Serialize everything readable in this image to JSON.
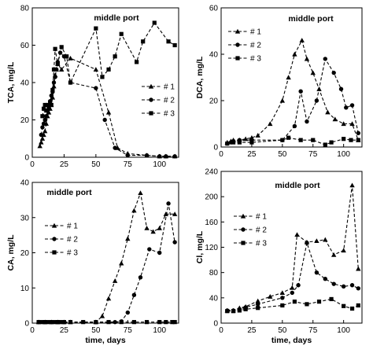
{
  "chart_data": [
    {
      "type": "line",
      "title": "middle port",
      "xlabel": "",
      "ylabel": "TCA, mg/L",
      "xlim": [
        0,
        115
      ],
      "ylim": [
        0,
        80
      ],
      "xticks": [
        0,
        25,
        50,
        75,
        100
      ],
      "yticks": [
        0,
        20,
        40,
        60,
        80
      ],
      "x_tick_labels": [
        "0",
        "25",
        "50",
        "75",
        "100"
      ],
      "y_tick_labels": [
        "0",
        "20",
        "40",
        "60",
        "80"
      ],
      "legend": "center-right",
      "series": [
        {
          "name": "# 1",
          "marker": "triangle",
          "points": [
            [
              6,
              6
            ],
            [
              7,
              8
            ],
            [
              8,
              10
            ],
            [
              9,
              12
            ],
            [
              10,
              14
            ],
            [
              11,
              18
            ],
            [
              12,
              22
            ],
            [
              13,
              24
            ],
            [
              14,
              26
            ],
            [
              15,
              28
            ],
            [
              16,
              32
            ],
            [
              17,
              38
            ],
            [
              18,
              44
            ],
            [
              19,
              47
            ],
            [
              20,
              50
            ],
            [
              23,
              47
            ],
            [
              30,
              53
            ],
            [
              50,
              47
            ],
            [
              60,
              24
            ],
            [
              67,
              5
            ],
            [
              75,
              2
            ],
            [
              90,
              1
            ],
            [
              100,
              0.5
            ],
            [
              105,
              0.5
            ],
            [
              112,
              0.5
            ]
          ]
        },
        {
          "name": "# 2",
          "marker": "circle",
          "points": [
            [
              7,
              12
            ],
            [
              8,
              16
            ],
            [
              9,
              18
            ],
            [
              10,
              20
            ],
            [
              11,
              22
            ],
            [
              12,
              25
            ],
            [
              13,
              27
            ],
            [
              14,
              30
            ],
            [
              15,
              33
            ],
            [
              16,
              35
            ],
            [
              17,
              40
            ],
            [
              18,
              43
            ],
            [
              19,
              47
            ],
            [
              20,
              51
            ],
            [
              22,
              56
            ],
            [
              25,
              54
            ],
            [
              30,
              40
            ],
            [
              50,
              37
            ],
            [
              57,
              20
            ],
            [
              65,
              5
            ],
            [
              75,
              1
            ],
            [
              90,
              1
            ],
            [
              100,
              0.5
            ],
            [
              105,
              0.5
            ],
            [
              112,
              0.5
            ]
          ]
        },
        {
          "name": "# 3",
          "marker": "square",
          "points": [
            [
              8,
              22
            ],
            [
              9,
              26
            ],
            [
              10,
              28
            ],
            [
              11,
              25
            ],
            [
              12,
              28
            ],
            [
              13,
              27
            ],
            [
              14,
              29
            ],
            [
              15,
              28
            ],
            [
              16,
              36
            ],
            [
              17,
              47
            ],
            [
              18,
              58
            ],
            [
              20,
              50
            ],
            [
              23,
              59
            ],
            [
              27,
              54
            ],
            [
              30,
              40
            ],
            [
              50,
              69
            ],
            [
              55,
              43
            ],
            [
              60,
              47
            ],
            [
              65,
              54
            ],
            [
              70,
              66
            ],
            [
              82,
              51
            ],
            [
              87,
              62
            ],
            [
              96,
              72
            ],
            [
              107,
              62
            ],
            [
              112,
              60
            ]
          ]
        }
      ]
    },
    {
      "type": "line",
      "title": "middle port",
      "xlabel": "",
      "ylabel": "DCA, mg/L",
      "xlim": [
        0,
        115
      ],
      "ylim": [
        0,
        60
      ],
      "xticks": [
        0,
        25,
        50,
        75,
        100
      ],
      "yticks": [
        0,
        20,
        40,
        60
      ],
      "x_tick_labels": [
        "0",
        "25",
        "50",
        "75",
        "100"
      ],
      "y_tick_labels": [
        "0",
        "20",
        "40",
        "60"
      ],
      "legend": "top-left",
      "series": [
        {
          "name": "# 1",
          "marker": "triangle",
          "points": [
            [
              5,
              2
            ],
            [
              8,
              2.5
            ],
            [
              10,
              3
            ],
            [
              15,
              3
            ],
            [
              20,
              3.5
            ],
            [
              25,
              4
            ],
            [
              30,
              5
            ],
            [
              40,
              10
            ],
            [
              50,
              20
            ],
            [
              55,
              30
            ],
            [
              60,
              40
            ],
            [
              66,
              46
            ],
            [
              70,
              38
            ],
            [
              75,
              32
            ],
            [
              80,
              25
            ],
            [
              87,
              15
            ],
            [
              93,
              12
            ],
            [
              100,
              10
            ],
            [
              107,
              10
            ],
            [
              112,
              3
            ]
          ]
        },
        {
          "name": "# 2",
          "marker": "circle",
          "points": [
            [
              5,
              1.5
            ],
            [
              8,
              2
            ],
            [
              10,
              2.5
            ],
            [
              15,
              3
            ],
            [
              25,
              3
            ],
            [
              50,
              3
            ],
            [
              60,
              9
            ],
            [
              65,
              24
            ],
            [
              70,
              11
            ],
            [
              78,
              20
            ],
            [
              85,
              38
            ],
            [
              92,
              32
            ],
            [
              98,
              25
            ],
            [
              102,
              17
            ],
            [
              107,
              18
            ],
            [
              112,
              6
            ]
          ]
        },
        {
          "name": "# 3",
          "marker": "square",
          "points": [
            [
              5,
              1.5
            ],
            [
              10,
              2
            ],
            [
              15,
              2
            ],
            [
              25,
              2
            ],
            [
              50,
              3
            ],
            [
              55,
              4
            ],
            [
              65,
              3
            ],
            [
              75,
              3
            ],
            [
              85,
              1
            ],
            [
              90,
              2
            ],
            [
              100,
              3.5
            ],
            [
              106,
              3
            ],
            [
              112,
              3
            ]
          ]
        }
      ]
    },
    {
      "type": "line",
      "title": "middle port",
      "xlabel": "time, days",
      "ylabel": "CA, mg/L",
      "xlim": [
        0,
        115
      ],
      "ylim": [
        0,
        40
      ],
      "xticks": [
        0,
        25,
        50,
        75,
        100
      ],
      "yticks": [
        0,
        10,
        20,
        30,
        40
      ],
      "x_tick_labels": [
        "0",
        "25",
        "50",
        "75",
        "100"
      ],
      "y_tick_labels": [
        "0",
        "10",
        "20",
        "30",
        "40"
      ],
      "legend": "center-left",
      "series": [
        {
          "name": "# 1",
          "marker": "triangle",
          "points": [
            [
              5,
              0.3
            ],
            [
              10,
              0.3
            ],
            [
              15,
              0.3
            ],
            [
              20,
              0.3
            ],
            [
              25,
              0.3
            ],
            [
              30,
              0.3
            ],
            [
              50,
              0.3
            ],
            [
              55,
              2
            ],
            [
              60,
              7
            ],
            [
              65,
              12
            ],
            [
              70,
              17
            ],
            [
              75,
              24
            ],
            [
              80,
              32
            ],
            [
              85,
              37
            ],
            [
              90,
              27
            ],
            [
              95,
              26
            ],
            [
              100,
              27
            ],
            [
              105,
              31
            ],
            [
              112,
              31
            ]
          ]
        },
        {
          "name": "# 2",
          "marker": "circle",
          "points": [
            [
              5,
              0.3
            ],
            [
              10,
              0.3
            ],
            [
              15,
              0.3
            ],
            [
              20,
              0.3
            ],
            [
              25,
              0.3
            ],
            [
              50,
              0.3
            ],
            [
              65,
              0.3
            ],
            [
              70,
              0.5
            ],
            [
              75,
              3
            ],
            [
              80,
              8
            ],
            [
              85,
              13
            ],
            [
              92,
              21
            ],
            [
              100,
              20
            ],
            [
              107,
              34
            ],
            [
              112,
              23
            ]
          ]
        },
        {
          "name": "# 3",
          "marker": "square",
          "points": [
            [
              5,
              0.3
            ],
            [
              8,
              0.3
            ],
            [
              10,
              0.3
            ],
            [
              12,
              0.3
            ],
            [
              15,
              0.3
            ],
            [
              18,
              0.3
            ],
            [
              20,
              0.3
            ],
            [
              22,
              0.3
            ],
            [
              25,
              0.3
            ],
            [
              30,
              0.3
            ],
            [
              40,
              0.3
            ],
            [
              50,
              0.3
            ],
            [
              60,
              0.3
            ],
            [
              70,
              0.3
            ],
            [
              80,
              0.3
            ],
            [
              90,
              0.3
            ],
            [
              100,
              0.3
            ],
            [
              105,
              0.3
            ],
            [
              110,
              0.3
            ],
            [
              112,
              0.3
            ]
          ]
        }
      ]
    },
    {
      "type": "line",
      "title": "middle port",
      "xlabel": "time, days",
      "ylabel": "Cl, mg/L",
      "xlim": [
        0,
        115
      ],
      "ylim": [
        0,
        240
      ],
      "xticks": [
        0,
        25,
        50,
        75,
        100
      ],
      "yticks": [
        0,
        40,
        80,
        120,
        160,
        200,
        240
      ],
      "x_tick_labels": [
        "0",
        "25",
        "50",
        "75",
        "100"
      ],
      "y_tick_labels": [
        "0",
        "40",
        "80",
        "120",
        "160",
        "200",
        "240"
      ],
      "legend": "center-left",
      "series": [
        {
          "name": "# 1",
          "marker": "triangle",
          "points": [
            [
              5,
              20
            ],
            [
              10,
              20
            ],
            [
              15,
              24
            ],
            [
              20,
              26
            ],
            [
              30,
              35
            ],
            [
              40,
              42
            ],
            [
              50,
              48
            ],
            [
              58,
              56
            ],
            [
              62,
              140
            ],
            [
              70,
              128
            ],
            [
              78,
              130
            ],
            [
              85,
              132
            ],
            [
              92,
              108
            ],
            [
              100,
              115
            ],
            [
              107,
              218
            ],
            [
              112,
              86
            ]
          ]
        },
        {
          "name": "# 2",
          "marker": "circle",
          "points": [
            [
              5,
              20
            ],
            [
              10,
              20
            ],
            [
              15,
              22
            ],
            [
              20,
              25
            ],
            [
              30,
              30
            ],
            [
              50,
              40
            ],
            [
              58,
              48
            ],
            [
              63,
              60
            ],
            [
              70,
              127
            ],
            [
              78,
              80
            ],
            [
              85,
              70
            ],
            [
              92,
              62
            ],
            [
              100,
              58
            ],
            [
              107,
              60
            ],
            [
              112,
              55
            ]
          ]
        },
        {
          "name": "# 3",
          "marker": "square",
          "points": [
            [
              5,
              19
            ],
            [
              10,
              19
            ],
            [
              15,
              20
            ],
            [
              20,
              22
            ],
            [
              30,
              24
            ],
            [
              50,
              28
            ],
            [
              60,
              34
            ],
            [
              70,
              30
            ],
            [
              80,
              34
            ],
            [
              90,
              38
            ],
            [
              100,
              27
            ],
            [
              107,
              23
            ],
            [
              112,
              28
            ]
          ]
        }
      ]
    }
  ]
}
